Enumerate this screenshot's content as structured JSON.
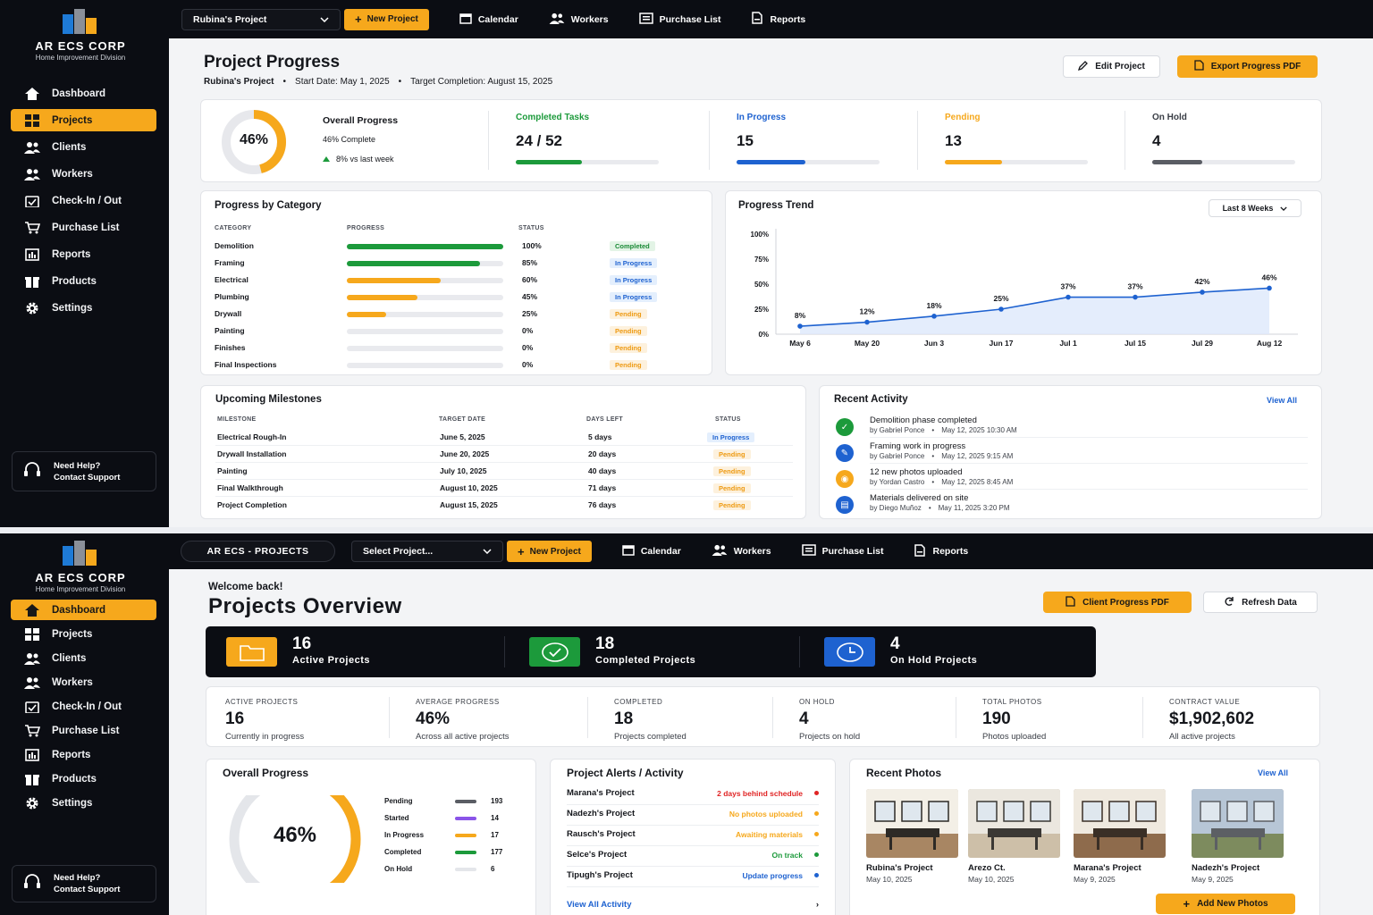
{
  "brand": {
    "name": "AR ECS CORP",
    "subtitle": "Home Improvement Division"
  },
  "colors": {
    "accent": "#f6a81c",
    "dark": "#0b0d13",
    "green": "#1c9a3b",
    "blue": "#1e62d0",
    "grey": "#5a5d64"
  },
  "sidebar": {
    "items": [
      {
        "label": "Dashboard",
        "icon": "home-icon"
      },
      {
        "label": "Projects",
        "icon": "grid-icon"
      },
      {
        "label": "Clients",
        "icon": "users-icon"
      },
      {
        "label": "Workers",
        "icon": "workers-icon"
      },
      {
        "label": "Check-In / Out",
        "icon": "calendar-check-icon"
      },
      {
        "label": "Purchase List",
        "icon": "cart-icon"
      },
      {
        "label": "Reports",
        "icon": "reports-icon"
      },
      {
        "label": "Products",
        "icon": "box-icon"
      },
      {
        "label": "Settings",
        "icon": "gear-icon"
      }
    ],
    "help": {
      "line1": "Need Help?",
      "line2": "Contact Support"
    }
  },
  "screen1": {
    "topbar": {
      "project_select": "Rubina's Project",
      "new_project": "New Project",
      "links": [
        "Calendar",
        "Workers",
        "Purchase List",
        "Reports"
      ]
    },
    "header": {
      "title": "Project Progress",
      "project": "Rubina's Project",
      "start": "Start Date: May 1, 2025",
      "target": "Target Completion: August 15, 2025",
      "edit_btn": "Edit Project",
      "export_btn": "Export Progress PDF"
    },
    "summary": {
      "percent": "46%",
      "percent_value": 46,
      "title": "Overall Progress",
      "complete": "46% Complete",
      "trend": "8% vs last week",
      "tiles": [
        {
          "label": "Completed Tasks",
          "value": "24 / 52",
          "fraction": 0.4615,
          "color": "#1c9a3b"
        },
        {
          "label": "In Progress",
          "value": "15",
          "fraction": 0.4808,
          "color": "#1e62d0"
        },
        {
          "label": "Pending",
          "value": "13",
          "fraction": 0.4,
          "color": "#f6a81c"
        },
        {
          "label": "On Hold",
          "value": "4",
          "fraction": 0.35,
          "color": "#5a5d64"
        }
      ]
    },
    "categories": {
      "title": "Progress by Category",
      "headers": [
        "CATEGORY",
        "PROGRESS",
        "STATUS"
      ],
      "rows": [
        {
          "name": "Demolition",
          "progress": 100,
          "label": "100%",
          "status": "Completed",
          "status_key": "completed"
        },
        {
          "name": "Framing",
          "progress": 85,
          "label": "85%",
          "status": "In Progress",
          "status_key": "inprogress"
        },
        {
          "name": "Electrical",
          "progress": 60,
          "label": "60%",
          "status": "In Progress",
          "status_key": "inprogress"
        },
        {
          "name": "Plumbing",
          "progress": 45,
          "label": "45%",
          "status": "In Progress",
          "status_key": "inprogress"
        },
        {
          "name": "Drywall",
          "progress": 25,
          "label": "25%",
          "status": "Pending",
          "status_key": "pending"
        },
        {
          "name": "Painting",
          "progress": 0,
          "label": "0%",
          "status": "Pending",
          "status_key": "pending"
        },
        {
          "name": "Finishes",
          "progress": 0,
          "label": "0%",
          "status": "Pending",
          "status_key": "pending"
        },
        {
          "name": "Final Inspections",
          "progress": 0,
          "label": "0%",
          "status": "Pending",
          "status_key": "pending"
        }
      ]
    },
    "trend": {
      "title": "Progress Trend",
      "range": "Last 8 Weeks"
    },
    "milestones": {
      "title": "Upcoming Milestones",
      "headers": [
        "MILESTONE",
        "TARGET DATE",
        "DAYS LEFT",
        "STATUS"
      ],
      "rows": [
        {
          "name": "Electrical Rough-In",
          "date": "June 5, 2025",
          "days": "5 days",
          "status": "In Progress",
          "status_key": "inprogress"
        },
        {
          "name": "Drywall Installation",
          "date": "June 20, 2025",
          "days": "20 days",
          "status": "Pending",
          "status_key": "pending"
        },
        {
          "name": "Painting",
          "date": "July 10, 2025",
          "days": "40 days",
          "status": "Pending",
          "status_key": "pending"
        },
        {
          "name": "Final Walkthrough",
          "date": "August 10, 2025",
          "days": "71 days",
          "status": "Pending",
          "status_key": "pending"
        },
        {
          "name": "Project Completion",
          "date": "August 15, 2025",
          "days": "76 days",
          "status": "Pending",
          "status_key": "pending"
        }
      ]
    },
    "activity": {
      "title": "Recent Activity",
      "view_all": "View All",
      "items": [
        {
          "title": "Demolition phase completed",
          "by": "by Gabriel Ponce",
          "when": "May 12, 2025 10:30 AM",
          "icon": "check-circle-icon",
          "color": "#1c9a3b"
        },
        {
          "title": "Framing work in progress",
          "by": "by Gabriel Ponce",
          "when": "May 12, 2025 9:15 AM",
          "icon": "wrench-icon",
          "color": "#1e62d0"
        },
        {
          "title": "12 new photos uploaded",
          "by": "by Yordan Castro",
          "when": "May 12, 2025 8:45 AM",
          "icon": "camera-icon",
          "color": "#f6a81c"
        },
        {
          "title": "Materials delivered on site",
          "by": "by Diego Muñoz",
          "when": "May 11, 2025 3:20 PM",
          "icon": "document-icon",
          "color": "#1e62d0"
        }
      ]
    }
  },
  "chart_data": {
    "type": "line",
    "title": "Progress Trend",
    "categories": [
      "May 6",
      "May 20",
      "Jun 3",
      "Jun 17",
      "Jul 1",
      "Jul 15",
      "Jul 29",
      "Aug 12"
    ],
    "values": [
      8,
      12,
      18,
      25,
      37,
      37,
      42,
      46
    ],
    "data_labels": [
      "8%",
      "12%",
      "18%",
      "25%",
      "37%",
      "37%",
      "42%",
      "46%"
    ],
    "yticks": [
      "0%",
      "25%",
      "50%",
      "75%",
      "100%"
    ],
    "ylim": [
      0,
      100
    ],
    "area_fill": true,
    "color": "#1e62d0"
  },
  "screen2": {
    "topbar": {
      "crumb": "AR ECS - PROJECTS",
      "project_select": "Select Project...",
      "new_project": "New Project",
      "links": [
        "Calendar",
        "Workers",
        "Purchase List",
        "Reports"
      ]
    },
    "header": {
      "welcome": "Welcome back!",
      "title": "Projects Overview",
      "pdf_btn": "Client Progress PDF",
      "refresh_btn": "Refresh Data"
    },
    "banner": [
      {
        "value": "16",
        "label": "Active Projects",
        "icon": "folder-icon",
        "color": "#f6a81c"
      },
      {
        "value": "18",
        "label": "Completed Projects",
        "icon": "check-circle-icon",
        "color": "#1c9a3b"
      },
      {
        "value": "4",
        "label": "On Hold Projects",
        "icon": "clock-icon",
        "color": "#1e62d0"
      }
    ],
    "stats": [
      {
        "label": "ACTIVE PROJECTS",
        "value": "16",
        "sub": "Currently in progress"
      },
      {
        "label": "AVERAGE PROGRESS",
        "value": "46%",
        "sub": "Across all active projects"
      },
      {
        "label": "COMPLETED",
        "value": "18",
        "sub": "Projects completed"
      },
      {
        "label": "ON HOLD",
        "value": "4",
        "sub": "Projects on hold"
      },
      {
        "label": "TOTAL PHOTOS",
        "value": "190",
        "sub": "Photos uploaded"
      },
      {
        "label": "CONTRACT VALUE",
        "value": "$1,902,602",
        "sub": "All active projects"
      }
    ],
    "overall": {
      "title": "Overall Progress",
      "percent": "46%",
      "percent_value": 46,
      "legend": [
        {
          "name": "Pending",
          "value": "193",
          "color": "#5a5d64"
        },
        {
          "name": "Started",
          "value": "14",
          "color": "#8a54e8"
        },
        {
          "name": "In Progress",
          "value": "17",
          "color": "#f6a81c"
        },
        {
          "name": "Completed",
          "value": "177",
          "color": "#1c9a3b"
        },
        {
          "name": "On Hold",
          "value": "6",
          "color": "#e4e6ea"
        }
      ]
    },
    "alerts": {
      "title": "Project Alerts / Activity",
      "items": [
        {
          "project": "Marana's Project",
          "message": "2 days behind schedule",
          "color": "#e02424"
        },
        {
          "project": "Nadezh's Project",
          "message": "No photos uploaded",
          "color": "#f6a81c"
        },
        {
          "project": "Rausch's Project",
          "message": "Awaiting materials",
          "color": "#f6a81c"
        },
        {
          "project": "Selce's Project",
          "message": "On track",
          "color": "#1c9a3b"
        },
        {
          "project": "Tipugh's Project",
          "message": "Update progress",
          "color": "#1e62d0"
        }
      ],
      "view_all": "View All Activity"
    },
    "photos": {
      "title": "Recent Photos",
      "view_all": "View All",
      "items": [
        {
          "name": "Rubina's Project",
          "date": "May 10, 2025"
        },
        {
          "name": "Arezo Ct.",
          "date": "May 10, 2025"
        },
        {
          "name": "Marana's Project",
          "date": "May 9, 2025"
        },
        {
          "name": "Nadezh's Project",
          "date": "May 9, 2025"
        }
      ],
      "add_btn": "Add New Photos"
    }
  }
}
